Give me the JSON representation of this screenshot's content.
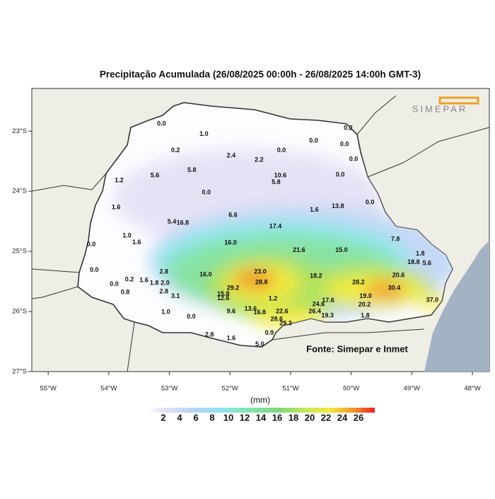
{
  "map": {
    "title": "Precipitação Acumulada (26/08/2025 00:00h - 26/08/2025 14:00h GMT-3)",
    "logo": "SIMEPAR",
    "source": "Fonte: Simepar e Inmet",
    "xlim": [
      -55.27,
      -47.72
    ],
    "ylim": [
      -22.29,
      -27.0
    ],
    "xticks": [
      {
        "value": -55,
        "label": "55°W"
      },
      {
        "value": -54,
        "label": "54°W"
      },
      {
        "value": -53,
        "label": "53°W"
      },
      {
        "value": -52,
        "label": "52°W"
      },
      {
        "value": -51,
        "label": "51°W"
      },
      {
        "value": -50,
        "label": "50°W"
      },
      {
        "value": -49,
        "label": "49°W"
      },
      {
        "value": -48,
        "label": "48°W"
      }
    ],
    "yticks": [
      {
        "value": -23,
        "label": "23°S"
      },
      {
        "value": -24,
        "label": "24°S"
      },
      {
        "value": -25,
        "label": "25°S"
      },
      {
        "value": -26,
        "label": "26°S"
      },
      {
        "value": -27,
        "label": "27°S"
      }
    ],
    "stations": [
      {
        "lon": -53.13,
        "lat": -22.88,
        "label": "0.0"
      },
      {
        "lon": -52.43,
        "lat": -23.05,
        "label": "1.0"
      },
      {
        "lon": -52.9,
        "lat": -23.32,
        "label": "0.2"
      },
      {
        "lon": -51.98,
        "lat": -23.41,
        "label": "2.4"
      },
      {
        "lon": -51.52,
        "lat": -23.48,
        "label": "2.2"
      },
      {
        "lon": -51.15,
        "lat": -23.32,
        "label": "0.0"
      },
      {
        "lon": -50.62,
        "lat": -23.16,
        "label": "0.0"
      },
      {
        "lon": -50.05,
        "lat": -22.95,
        "label": "0.2"
      },
      {
        "lon": -50.11,
        "lat": -23.22,
        "label": "0.0"
      },
      {
        "lon": -49.96,
        "lat": -23.47,
        "label": "0.0"
      },
      {
        "lon": -52.63,
        "lat": -23.65,
        "label": "5.8"
      },
      {
        "lon": -53.24,
        "lat": -23.74,
        "label": "5.6"
      },
      {
        "lon": -53.83,
        "lat": -23.82,
        "label": "1.2"
      },
      {
        "lon": -51.17,
        "lat": -23.74,
        "label": "10.6"
      },
      {
        "lon": -51.24,
        "lat": -23.85,
        "label": "5.8"
      },
      {
        "lon": -50.18,
        "lat": -23.73,
        "label": "0.0"
      },
      {
        "lon": -52.39,
        "lat": -24.02,
        "label": "0.0"
      },
      {
        "lon": -53.88,
        "lat": -24.27,
        "label": "1.6"
      },
      {
        "lon": -51.95,
        "lat": -24.4,
        "label": "6.6"
      },
      {
        "lon": -50.61,
        "lat": -24.31,
        "label": "1.6"
      },
      {
        "lon": -50.22,
        "lat": -24.25,
        "label": "13.8"
      },
      {
        "lon": -49.69,
        "lat": -24.19,
        "label": "0.0"
      },
      {
        "lon": -52.96,
        "lat": -24.51,
        "label": "5.4"
      },
      {
        "lon": -52.78,
        "lat": -24.53,
        "label": "16.8"
      },
      {
        "lon": -51.25,
        "lat": -24.59,
        "label": "17.4"
      },
      {
        "lon": -53.7,
        "lat": -24.74,
        "label": "1.0"
      },
      {
        "lon": -53.54,
        "lat": -24.85,
        "label": "1.6"
      },
      {
        "lon": -54.29,
        "lat": -24.89,
        "label": "0.0"
      },
      {
        "lon": -51.99,
        "lat": -24.86,
        "label": "16.0"
      },
      {
        "lon": -50.86,
        "lat": -24.98,
        "label": "21.6"
      },
      {
        "lon": -50.16,
        "lat": -24.98,
        "label": "15.0"
      },
      {
        "lon": -49.27,
        "lat": -24.8,
        "label": "7.8"
      },
      {
        "lon": -48.86,
        "lat": -25.04,
        "label": "1.8"
      },
      {
        "lon": -48.97,
        "lat": -25.18,
        "label": "18.8"
      },
      {
        "lon": -48.75,
        "lat": -25.2,
        "label": "5.6"
      },
      {
        "lon": -54.24,
        "lat": -25.31,
        "label": "0.0"
      },
      {
        "lon": -53.09,
        "lat": -25.34,
        "label": "2.8"
      },
      {
        "lon": -52.4,
        "lat": -25.39,
        "label": "16.0"
      },
      {
        "lon": -51.5,
        "lat": -25.34,
        "label": "23.0"
      },
      {
        "lon": -50.58,
        "lat": -25.41,
        "label": "18.2"
      },
      {
        "lon": -51.48,
        "lat": -25.52,
        "label": "28.8"
      },
      {
        "lon": -51.95,
        "lat": -25.61,
        "label": "29.2"
      },
      {
        "lon": -49.88,
        "lat": -25.52,
        "label": "28.2"
      },
      {
        "lon": -49.29,
        "lat": -25.61,
        "label": "30.4"
      },
      {
        "lon": -49.22,
        "lat": -25.4,
        "label": "20.6"
      },
      {
        "lon": -53.66,
        "lat": -25.47,
        "label": "0.2"
      },
      {
        "lon": -53.42,
        "lat": -25.48,
        "label": "1.6"
      },
      {
        "lon": -53.25,
        "lat": -25.53,
        "label": "1.8"
      },
      {
        "lon": -53.07,
        "lat": -25.53,
        "label": "2.0"
      },
      {
        "lon": -53.91,
        "lat": -25.55,
        "label": "0.0"
      },
      {
        "lon": -53.73,
        "lat": -25.68,
        "label": "0.8"
      },
      {
        "lon": -53.09,
        "lat": -25.67,
        "label": "2.8"
      },
      {
        "lon": -52.9,
        "lat": -25.75,
        "label": "3.1"
      },
      {
        "lon": -52.11,
        "lat": -25.71,
        "label": "15.8"
      },
      {
        "lon": -52.11,
        "lat": -25.78,
        "label": "12.6"
      },
      {
        "lon": -51.29,
        "lat": -25.79,
        "label": "1.2"
      },
      {
        "lon": -49.76,
        "lat": -25.75,
        "label": "19.0"
      },
      {
        "lon": -48.66,
        "lat": -25.81,
        "label": "37.0"
      },
      {
        "lon": -49.78,
        "lat": -25.89,
        "label": "20.2"
      },
      {
        "lon": -50.38,
        "lat": -25.82,
        "label": "17.6"
      },
      {
        "lon": -50.54,
        "lat": -25.88,
        "label": "24.6"
      },
      {
        "lon": -53.06,
        "lat": -26.01,
        "label": "1.0"
      },
      {
        "lon": -52.64,
        "lat": -26.09,
        "label": "0.0"
      },
      {
        "lon": -51.98,
        "lat": -26.0,
        "label": "9.6"
      },
      {
        "lon": -51.66,
        "lat": -25.96,
        "label": "13.6"
      },
      {
        "lon": -51.51,
        "lat": -26.02,
        "label": "16.8"
      },
      {
        "lon": -51.14,
        "lat": -26.0,
        "label": "22.6"
      },
      {
        "lon": -50.6,
        "lat": -26.0,
        "label": "26.4"
      },
      {
        "lon": -50.39,
        "lat": -26.07,
        "label": "19.3"
      },
      {
        "lon": -49.77,
        "lat": -26.07,
        "label": "1.8"
      },
      {
        "lon": -51.23,
        "lat": -26.13,
        "label": "28.6"
      },
      {
        "lon": -51.08,
        "lat": -26.2,
        "label": "29.3"
      },
      {
        "lon": -51.35,
        "lat": -26.36,
        "label": "0.9"
      },
      {
        "lon": -52.34,
        "lat": -26.39,
        "label": "2.8"
      },
      {
        "lon": -51.98,
        "lat": -26.45,
        "label": "1.6"
      },
      {
        "lon": -51.51,
        "lat": -26.55,
        "label": "5.0"
      }
    ],
    "legend": {
      "unit": "(mm)",
      "labels": [
        2,
        4,
        6,
        8,
        10,
        12,
        14,
        16,
        18,
        20,
        22,
        24,
        26
      ]
    }
  }
}
